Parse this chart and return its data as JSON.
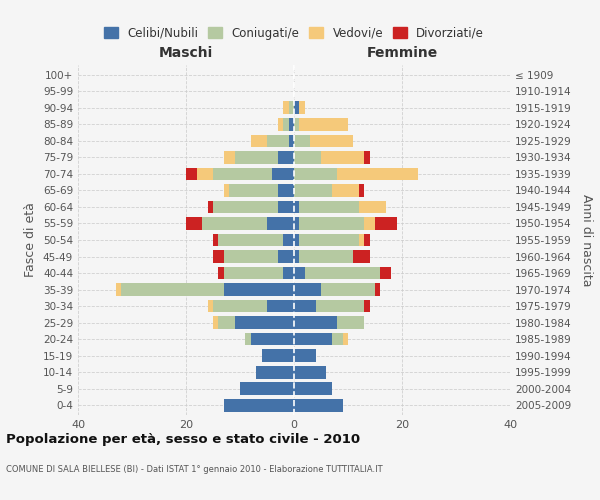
{
  "age_groups": [
    "0-4",
    "5-9",
    "10-14",
    "15-19",
    "20-24",
    "25-29",
    "30-34",
    "35-39",
    "40-44",
    "45-49",
    "50-54",
    "55-59",
    "60-64",
    "65-69",
    "70-74",
    "75-79",
    "80-84",
    "85-89",
    "90-94",
    "95-99",
    "100+"
  ],
  "birth_years": [
    "2005-2009",
    "2000-2004",
    "1995-1999",
    "1990-1994",
    "1985-1989",
    "1980-1984",
    "1975-1979",
    "1970-1974",
    "1965-1969",
    "1960-1964",
    "1955-1959",
    "1950-1954",
    "1945-1949",
    "1940-1944",
    "1935-1939",
    "1930-1934",
    "1925-1929",
    "1920-1924",
    "1915-1919",
    "1910-1914",
    "≤ 1909"
  ],
  "maschi": {
    "celibi": [
      13,
      10,
      7,
      6,
      8,
      11,
      5,
      13,
      2,
      3,
      2,
      5,
      3,
      3,
      4,
      3,
      1,
      1,
      0,
      0,
      0
    ],
    "coniugati": [
      0,
      0,
      0,
      0,
      1,
      3,
      10,
      19,
      11,
      10,
      12,
      12,
      12,
      9,
      11,
      8,
      4,
      1,
      1,
      0,
      0
    ],
    "vedovi": [
      0,
      0,
      0,
      0,
      0,
      1,
      1,
      1,
      0,
      0,
      0,
      0,
      0,
      1,
      3,
      2,
      3,
      1,
      1,
      0,
      0
    ],
    "divorziati": [
      0,
      0,
      0,
      0,
      0,
      0,
      0,
      0,
      1,
      2,
      1,
      3,
      1,
      0,
      2,
      0,
      0,
      0,
      0,
      0,
      0
    ]
  },
  "femmine": {
    "nubili": [
      9,
      7,
      6,
      4,
      7,
      8,
      4,
      5,
      2,
      1,
      1,
      1,
      1,
      0,
      0,
      0,
      0,
      0,
      1,
      0,
      0
    ],
    "coniugate": [
      0,
      0,
      0,
      0,
      2,
      5,
      9,
      10,
      14,
      10,
      11,
      12,
      11,
      7,
      8,
      5,
      3,
      1,
      0,
      0,
      0
    ],
    "vedove": [
      0,
      0,
      0,
      0,
      1,
      0,
      0,
      0,
      0,
      0,
      1,
      2,
      5,
      5,
      15,
      8,
      8,
      9,
      1,
      0,
      0
    ],
    "divorziate": [
      0,
      0,
      0,
      0,
      0,
      0,
      1,
      1,
      2,
      3,
      1,
      4,
      0,
      1,
      0,
      1,
      0,
      0,
      0,
      0,
      0
    ]
  },
  "colors": {
    "celibi": "#4472a8",
    "coniugati": "#b5c9a1",
    "vedovi": "#f5c97a",
    "divorziati": "#cc2222"
  },
  "title": "Popolazione per età, sesso e stato civile - 2010",
  "subtitle": "COMUNE DI SALA BIELLESE (BI) - Dati ISTAT 1° gennaio 2010 - Elaborazione TUTTITALIA.IT",
  "xlabel_left": "Maschi",
  "xlabel_right": "Femmine",
  "ylabel_left": "Fasce di età",
  "ylabel_right": "Anni di nascita",
  "xlim": 40,
  "legend_labels": [
    "Celibi/Nubili",
    "Coniugati/e",
    "Vedovi/e",
    "Divorziati/e"
  ],
  "bg_color": "#f5f5f5",
  "grid_color": "#cccccc"
}
